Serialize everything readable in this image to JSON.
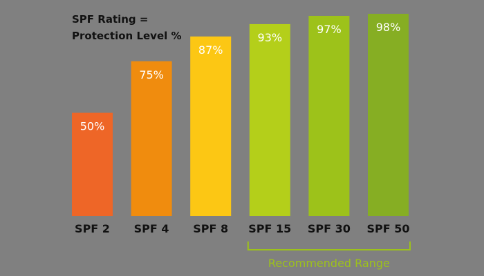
{
  "chart_data": {
    "type": "bar",
    "title_lines": [
      "SPF Rating =",
      "Protection Level %"
    ],
    "categories": [
      "SPF 2",
      "SPF 4",
      "SPF 8",
      "SPF 15",
      "SPF 30",
      "SPF 50"
    ],
    "values": [
      50,
      75,
      87,
      93,
      97,
      98
    ],
    "value_labels": [
      "50%",
      "75%",
      "87%",
      "93%",
      "97%",
      "98%"
    ],
    "colors": [
      "#ee6627",
      "#f08c0e",
      "#fcc714",
      "#b4cf1a",
      "#9dc21a",
      "#86ae23"
    ],
    "ylim": [
      0,
      100
    ],
    "grid": false,
    "annotation": {
      "text": "Recommended Range",
      "from_category": "SPF 15",
      "to_category": "SPF 50",
      "color": "#9dc21a"
    }
  }
}
